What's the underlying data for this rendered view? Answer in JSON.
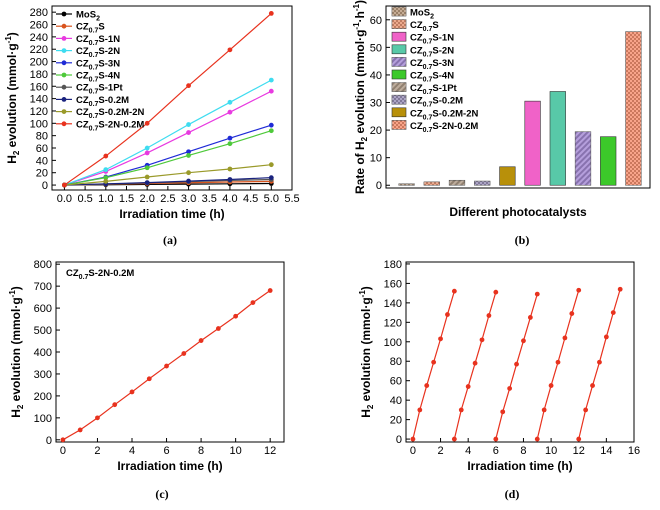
{
  "panel_labels": [
    "(a)",
    "(b)",
    "(c)",
    "(d)"
  ],
  "chart_data": [
    {
      "panel": "(a)",
      "type": "line",
      "xlabel": "Irradiation time (h)",
      "ylabel": "H2 evolution (mmol·g-1)",
      "xlim": [
        -0.3,
        5.5
      ],
      "ylim": [
        -8,
        290
      ],
      "xticks": [
        "0.0",
        "0.5",
        "1.0",
        "1.5",
        "2.0",
        "2.5",
        "3.0",
        "3.5",
        "4.0",
        "4.5",
        "5.0",
        "5.5"
      ],
      "yticks": [
        "0",
        "20",
        "40",
        "60",
        "80",
        "100",
        "120",
        "140",
        "160",
        "180",
        "200",
        "220",
        "240",
        "260",
        "280"
      ],
      "legend_position": "top-left",
      "x": [
        0,
        1,
        2,
        3,
        4,
        5
      ],
      "series": [
        {
          "name": "MoS2",
          "label_main": "MoS",
          "label_sub": "2",
          "label_tail": "",
          "color": "#000000",
          "values": [
            0,
            0.5,
            1,
            1.5,
            2,
            2.5
          ]
        },
        {
          "name": "CZ0.7S",
          "label_main": "CZ",
          "label_sub": "0.7",
          "label_tail": "S",
          "color": "#d9541e",
          "values": [
            0,
            1.2,
            2.5,
            3.7,
            5,
            6
          ]
        },
        {
          "name": "CZ0.7S-1N",
          "label_main": "CZ",
          "label_sub": "0.7",
          "label_tail": "S-1N",
          "color": "#e83ae0",
          "values": [
            0,
            22,
            52,
            85,
            118,
            152
          ]
        },
        {
          "name": "CZ0.7S-2N",
          "label_main": "CZ",
          "label_sub": "0.7",
          "label_tail": "S-2N",
          "color": "#3fdcf0",
          "values": [
            0,
            25,
            60,
            98,
            134,
            170
          ]
        },
        {
          "name": "CZ0.7S-3N",
          "label_main": "CZ",
          "label_sub": "0.7",
          "label_tail": "S-3N",
          "color": "#1f2bd6",
          "values": [
            0,
            13,
            32,
            54,
            76,
            97
          ]
        },
        {
          "name": "CZ0.7S-4N",
          "label_main": "CZ",
          "label_sub": "0.7",
          "label_tail": "S-4N",
          "color": "#4ec93a",
          "values": [
            0,
            12,
            28,
            48,
            67,
            88
          ]
        },
        {
          "name": "CZ0.7S-1Pt",
          "label_main": "CZ",
          "label_sub": "0.7",
          "label_tail": "S-1Pt",
          "color": "#555555",
          "values": [
            0,
            1.5,
            3.5,
            5.5,
            7.5,
            9
          ]
        },
        {
          "name": "CZ0.7S-0.2M",
          "label_main": "CZ",
          "label_sub": "0.7",
          "label_tail": "S-0.2M",
          "color": "#1a237e",
          "values": [
            0,
            2,
            4,
            6.5,
            9,
            12
          ]
        },
        {
          "name": "CZ0.7S-0.2M-2N",
          "label_main": "CZ",
          "label_sub": "0.7",
          "label_tail": "S-0.2M-2N",
          "color": "#9a9a2a",
          "values": [
            0,
            6,
            13,
            20,
            26,
            33
          ]
        },
        {
          "name": "CZ0.7S-2N-0.2M",
          "label_main": "CZ",
          "label_sub": "0.7",
          "label_tail": "S-2N-0.2M",
          "color": "#e8321e",
          "values": [
            0,
            47,
            100,
            161,
            219,
            278
          ]
        }
      ]
    },
    {
      "panel": "(b)",
      "type": "bar",
      "xlabel": "Different photocatalysts",
      "ylabel": "Rate of H2 evolution (mmol·g-1·h-1)",
      "ylim": [
        -1,
        65
      ],
      "yticks": [
        "0",
        "10",
        "20",
        "30",
        "40",
        "50",
        "60"
      ],
      "legend_position": "top-left",
      "bars": [
        {
          "name": "MoS2",
          "label_main": "MoS",
          "label_sub": "2",
          "label_tail": "",
          "color": "#8b5a2b",
          "pattern": "checker",
          "value": 0.5
        },
        {
          "name": "CZ0.7S",
          "label_main": "CZ",
          "label_sub": "0.7",
          "label_tail": "S",
          "color": "#d9541e",
          "pattern": "checker",
          "value": 1.2
        },
        {
          "name": "CZ0.7S-1N",
          "label_main": "CZ",
          "label_sub": "0.7",
          "label_tail": "S-1N",
          "color": "#f062c8",
          "pattern": "solid",
          "value": 30.5
        },
        {
          "name": "CZ0.7S-2N",
          "label_main": "CZ",
          "label_sub": "0.7",
          "label_tail": "S-2N",
          "color": "#58c9a8",
          "pattern": "solid",
          "value": 34
        },
        {
          "name": "CZ0.7S-3N",
          "label_main": "CZ",
          "label_sub": "0.7",
          "label_tail": "S-3N",
          "color": "#6a3fb8",
          "pattern": "hatch",
          "value": 19.4
        },
        {
          "name": "CZ0.7S-4N",
          "label_main": "CZ",
          "label_sub": "0.7",
          "label_tail": "S-4N",
          "color": "#3cc92a",
          "pattern": "solid",
          "value": 17.6
        },
        {
          "name": "CZ0.7S-1Pt",
          "label_main": "CZ",
          "label_sub": "0.7",
          "label_tail": "S-1Pt",
          "color": "#7a5a3a",
          "pattern": "hatch",
          "value": 1.8
        },
        {
          "name": "CZ0.7S-0.2M",
          "label_main": "CZ",
          "label_sub": "0.7",
          "label_tail": "S-0.2M",
          "color": "#5a4a8a",
          "pattern": "checker",
          "value": 1.5
        },
        {
          "name": "CZ0.7S-0.2M-2N",
          "label_main": "CZ",
          "label_sub": "0.7",
          "label_tail": "S-0.2M-2N",
          "color": "#b8900a",
          "pattern": "solid",
          "value": 6.7
        },
        {
          "name": "CZ0.7S-2N-0.2M",
          "label_main": "CZ",
          "label_sub": "0.7",
          "label_tail": "S-2N-0.2M",
          "color": "#f04a14",
          "pattern": "checker",
          "value": 55.7
        }
      ],
      "bar_order": [
        0,
        1,
        6,
        7,
        8,
        2,
        3,
        4,
        5,
        9
      ]
    },
    {
      "panel": "(c)",
      "type": "line",
      "annotation_main": "CZ",
      "annotation_sub": "0.7",
      "annotation_tail": "S-2N-0.2M",
      "xlabel": "Irradiation time (h)",
      "ylabel": "H2 evolution (mmol·g-1)",
      "xlim": [
        -0.4,
        12.8
      ],
      "ylim": [
        -10,
        810
      ],
      "xticks": [
        "0",
        "2",
        "4",
        "6",
        "8",
        "10",
        "12"
      ],
      "xtick_values": [
        0,
        2,
        4,
        6,
        8,
        10,
        12
      ],
      "yticks": [
        "0",
        "100",
        "200",
        "300",
        "400",
        "500",
        "600",
        "700",
        "800"
      ],
      "color": "#e8321e",
      "x": [
        0,
        1,
        2,
        3,
        4,
        5,
        6,
        7,
        8,
        9,
        10,
        11,
        12
      ],
      "values": [
        0,
        45,
        100,
        160,
        218,
        278,
        336,
        393,
        452,
        507,
        563,
        625,
        680
      ]
    },
    {
      "panel": "(d)",
      "type": "line",
      "xlabel": "Irradiation time (h)",
      "ylabel": "H2 evolution (mmol·g-1)",
      "xlim": [
        -0.5,
        16
      ],
      "ylim": [
        -3,
        182
      ],
      "xticks": [
        "0",
        "2",
        "4",
        "6",
        "8",
        "10",
        "12",
        "14",
        "16"
      ],
      "xtick_values": [
        0,
        2,
        4,
        6,
        8,
        10,
        12,
        14,
        16
      ],
      "yticks": [
        "0",
        "20",
        "40",
        "60",
        "80",
        "100",
        "120",
        "140",
        "160",
        "180"
      ],
      "color": "#e8321e",
      "cycles": [
        {
          "x": [
            0,
            0.5,
            1,
            1.5,
            2,
            2.5,
            3
          ],
          "values": [
            0,
            30,
            55,
            79,
            103,
            128,
            152
          ]
        },
        {
          "x": [
            3,
            3.5,
            4,
            4.5,
            5,
            5.5,
            6
          ],
          "values": [
            0,
            30,
            54,
            78,
            102,
            127,
            151
          ]
        },
        {
          "x": [
            6,
            6.5,
            7,
            7.5,
            8,
            8.5,
            9
          ],
          "values": [
            0,
            28,
            52,
            77,
            101,
            125,
            149
          ]
        },
        {
          "x": [
            9,
            9.5,
            10,
            10.5,
            11,
            11.5,
            12
          ],
          "values": [
            0,
            30,
            55,
            79,
            104,
            129,
            153
          ]
        },
        {
          "x": [
            12,
            12.5,
            13,
            13.5,
            14,
            14.5,
            15
          ],
          "values": [
            0,
            30,
            55,
            79,
            105,
            130,
            154
          ]
        }
      ]
    }
  ]
}
